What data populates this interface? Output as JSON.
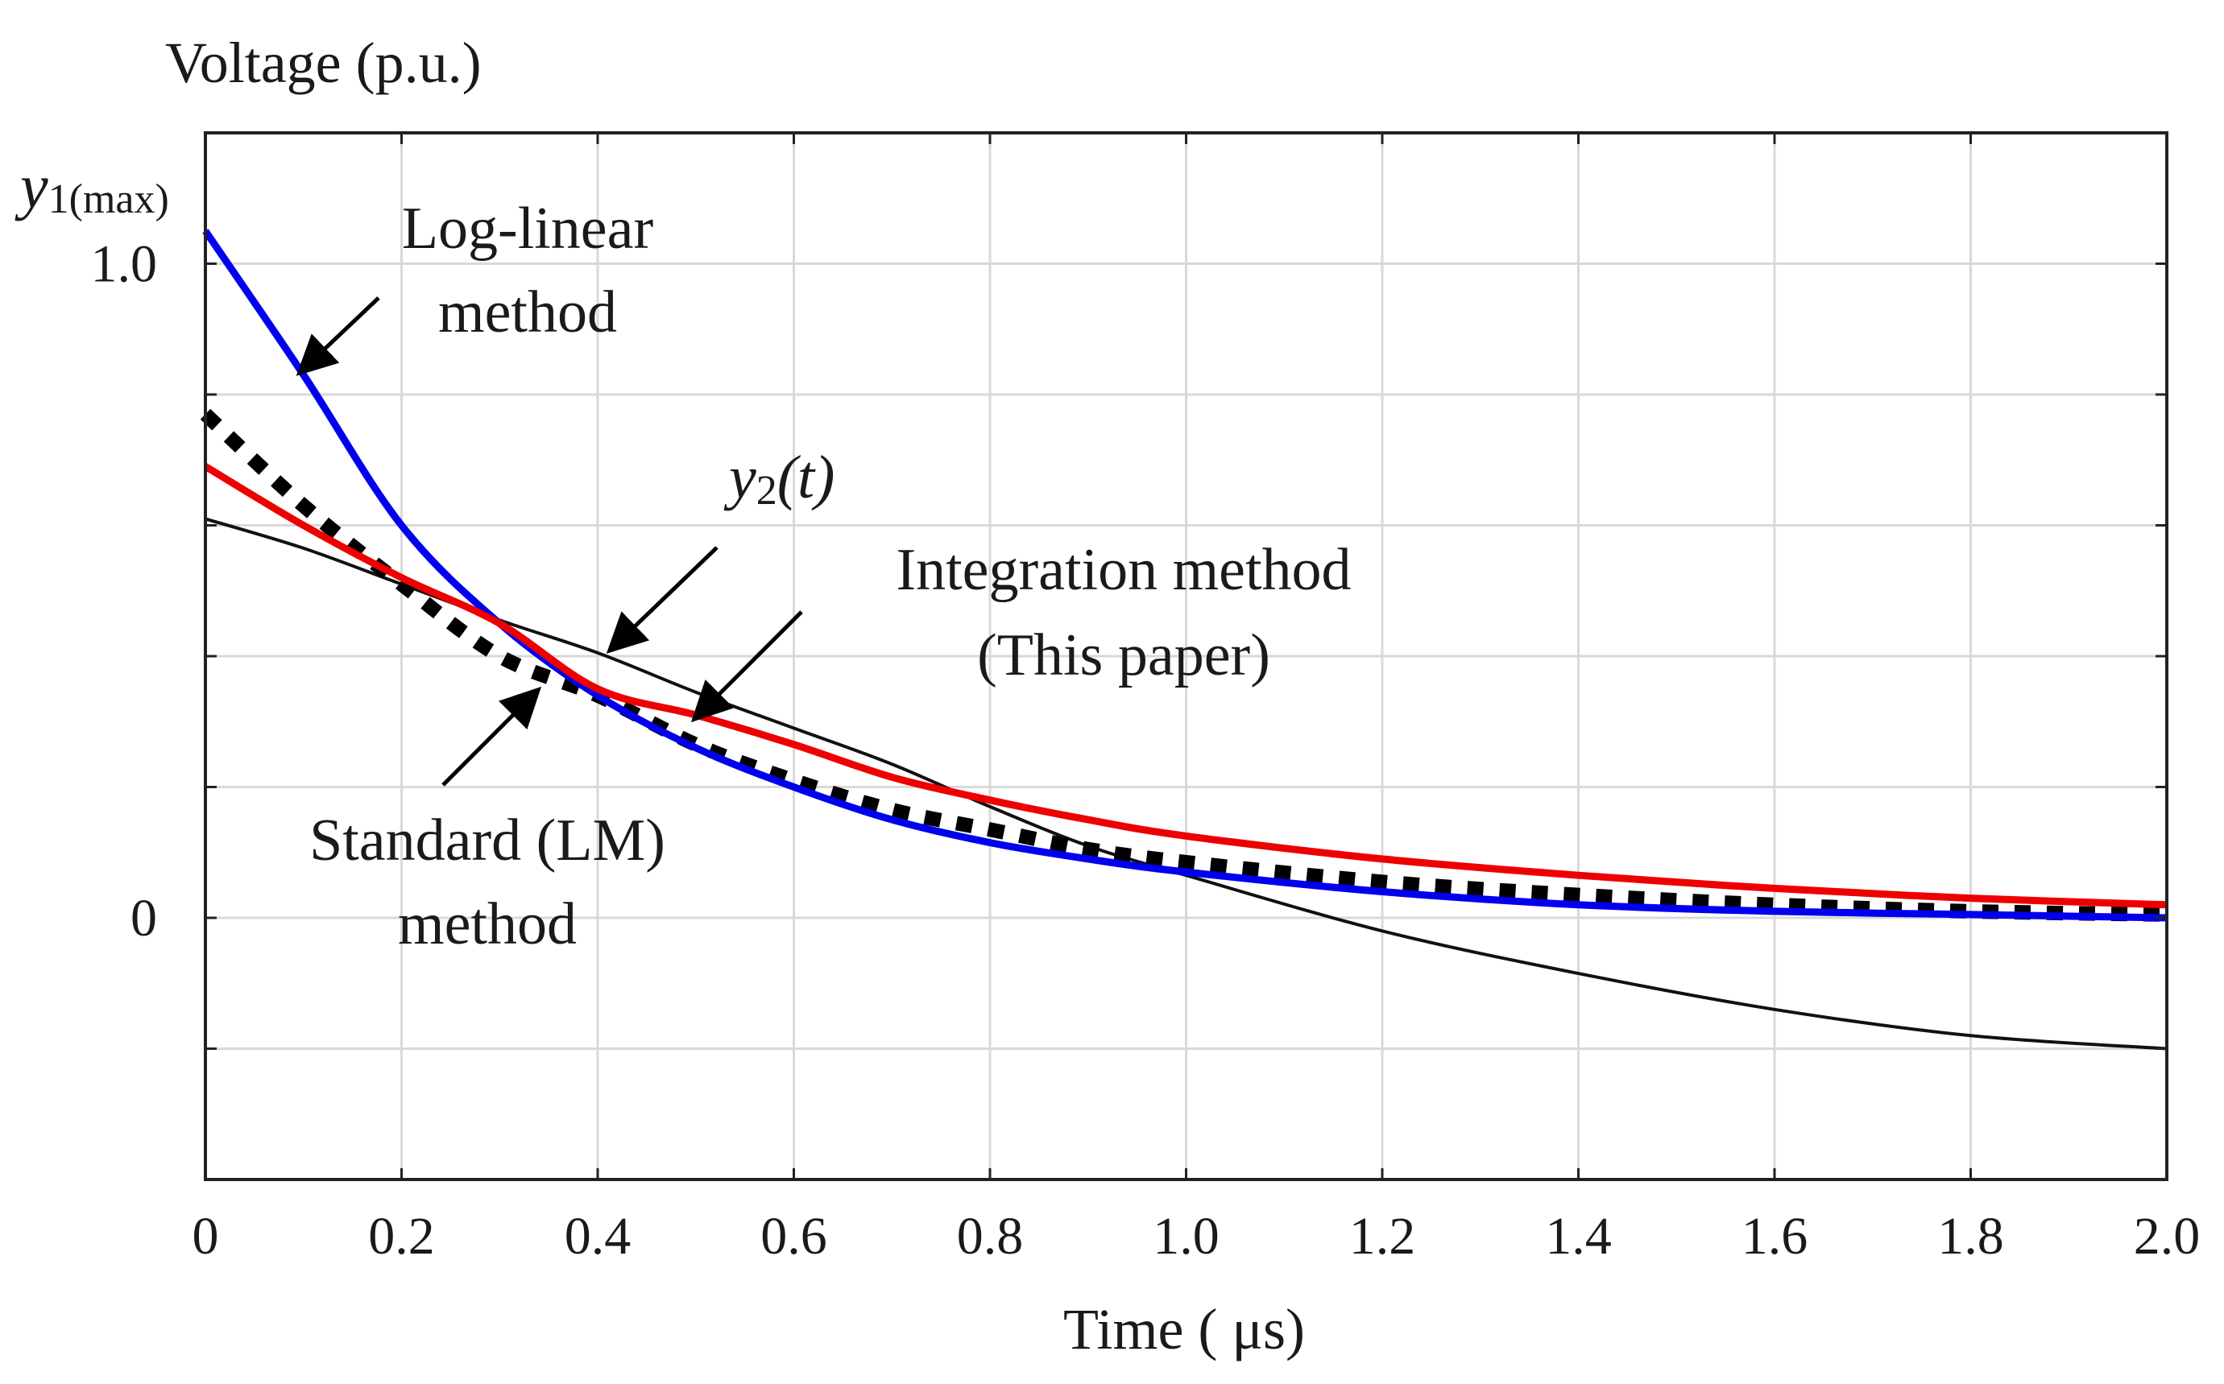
{
  "chart_data": {
    "type": "line",
    "ylabel": "Voltage (p.u.)",
    "xlabel": "Time ( μs)",
    "xlim": [
      0,
      2.0
    ],
    "ylim": [
      -0.4,
      1.2
    ],
    "grid": true,
    "x_ticks": [
      "0",
      "0.2",
      "0.4",
      "0.6",
      "0.8",
      "1.0",
      "1.2",
      "1.4",
      "1.6",
      "1.8",
      "2.0"
    ],
    "x_tick_values": [
      0,
      0.2,
      0.4,
      0.6,
      0.8,
      1.0,
      1.2,
      1.4,
      1.6,
      1.8,
      2.0
    ],
    "y_tick_values": [
      -0.2,
      0,
      0.2,
      0.4,
      0.6,
      0.8,
      1.0
    ],
    "y_tick_labels": [
      {
        "value": 0,
        "label": "0"
      },
      {
        "value": 1.0,
        "label": "1.0"
      }
    ],
    "y1max_label": {
      "base": "y",
      "sub": "1(max)"
    },
    "series": [
      {
        "name": "y2(t)",
        "color": "#111111",
        "style": "solid-thin",
        "x": [
          0,
          0.1,
          0.2,
          0.3,
          0.4,
          0.5,
          0.6,
          0.7,
          0.8,
          0.9,
          1.0,
          1.2,
          1.4,
          1.6,
          1.8,
          2.0
        ],
        "values": [
          0.61,
          0.565,
          0.51,
          0.455,
          0.405,
          0.345,
          0.29,
          0.235,
          0.17,
          0.11,
          0.065,
          -0.02,
          -0.085,
          -0.14,
          -0.18,
          -0.2
        ]
      },
      {
        "name": "Log-linear method",
        "color": "#0000ee",
        "style": "solid-thick",
        "x": [
          0,
          0.1,
          0.2,
          0.3,
          0.4,
          0.5,
          0.6,
          0.7,
          0.8,
          0.9,
          1.0,
          1.2,
          1.4,
          1.6,
          1.8,
          2.0
        ],
        "values": [
          1.05,
          0.83,
          0.6,
          0.45,
          0.34,
          0.26,
          0.2,
          0.15,
          0.115,
          0.09,
          0.07,
          0.04,
          0.02,
          0.01,
          0.005,
          0.0
        ]
      },
      {
        "name": "Integration method (This paper)",
        "color": "#ee0000",
        "style": "solid-thick",
        "x": [
          0,
          0.1,
          0.2,
          0.3,
          0.4,
          0.5,
          0.6,
          0.7,
          0.8,
          0.9,
          1.0,
          1.2,
          1.4,
          1.6,
          1.8,
          2.0
        ],
        "values": [
          0.69,
          0.6,
          0.52,
          0.45,
          0.35,
          0.31,
          0.265,
          0.215,
          0.18,
          0.15,
          0.125,
          0.09,
          0.065,
          0.045,
          0.03,
          0.02
        ]
      },
      {
        "name": "Standard (LM) method",
        "color": "#000000",
        "style": "dotted-thick",
        "x": [
          0,
          0.1,
          0.2,
          0.3,
          0.4,
          0.5,
          0.6,
          0.7,
          0.8,
          0.9,
          1.0,
          1.2,
          1.4,
          1.6,
          1.8,
          2.0
        ],
        "values": [
          0.77,
          0.63,
          0.51,
          0.4,
          0.34,
          0.265,
          0.21,
          0.165,
          0.135,
          0.105,
          0.085,
          0.055,
          0.035,
          0.02,
          0.01,
          0.005
        ]
      }
    ],
    "annotations": [
      {
        "id": "loglinear",
        "lines": [
          "Log-linear",
          "method"
        ]
      },
      {
        "id": "y2",
        "base": "y",
        "sub": "2",
        "suffix": "(t)"
      },
      {
        "id": "integration",
        "lines": [
          "Integration method",
          "(This paper)"
        ]
      },
      {
        "id": "standard",
        "lines": [
          "Standard (LM)",
          "method"
        ]
      }
    ]
  }
}
